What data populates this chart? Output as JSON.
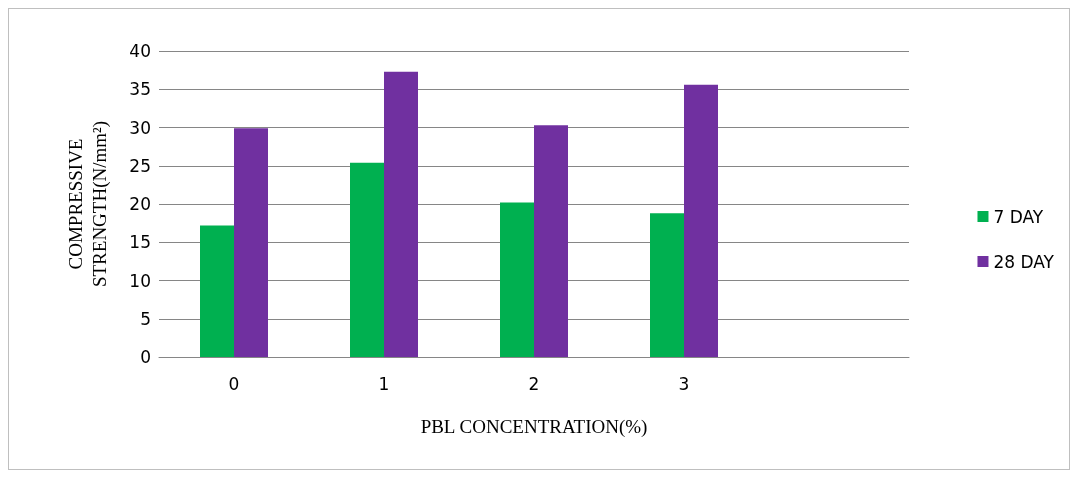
{
  "chart_data": {
    "type": "bar",
    "xlabel": "PBL CONCENTRATION(%)",
    "ylabel": "COMPRESSIVE STRENGTH(N/mm²)",
    "categories": [
      "0",
      "1",
      "2",
      "3",
      null
    ],
    "series": [
      {
        "name": "7 DAY",
        "color": "#00b050",
        "values": [
          17.2,
          25.4,
          20.2,
          18.8,
          null
        ]
      },
      {
        "name": "28 DAY",
        "color": "#7030a0",
        "values": [
          29.9,
          37.3,
          30.3,
          35.6,
          null
        ]
      }
    ],
    "ylim": [
      0,
      40
    ],
    "yticks": [
      0,
      5,
      10,
      15,
      20,
      25,
      30,
      35,
      40
    ],
    "grid": "y",
    "legend": "right"
  }
}
